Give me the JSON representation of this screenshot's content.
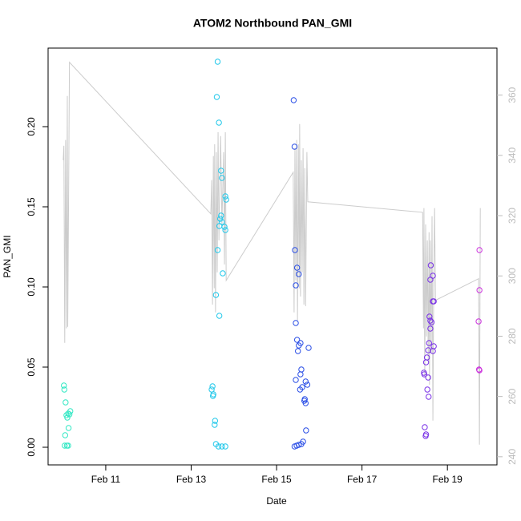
{
  "chart_data": {
    "type": "scatter",
    "title": "ATOM2 Northbound PAN_GMI",
    "x_label": "Date",
    "y_label": "PAN_GMI",
    "xlim": [
      9.65,
      20.16
    ],
    "xticks": [
      {
        "value": 11,
        "label": "Feb 11"
      },
      {
        "value": 13,
        "label": "Feb 13"
      },
      {
        "value": 15,
        "label": "Feb 15"
      },
      {
        "value": 17,
        "label": "Feb 17"
      },
      {
        "value": 19,
        "label": "Feb 19"
      }
    ],
    "ylim": [
      -0.011,
      0.249
    ],
    "yticks": [
      {
        "value": 0,
        "label": "0.00"
      },
      {
        "value": 0.05,
        "label": "0.05"
      },
      {
        "value": 0.1,
        "label": "0.10"
      },
      {
        "value": 0.15,
        "label": "0.15"
      },
      {
        "value": 0.2,
        "label": "0.20"
      }
    ],
    "y2lim": [
      237.3,
      375.6
    ],
    "y2ticks": [
      240,
      260,
      280,
      300,
      320,
      340,
      360
    ],
    "series": [
      {
        "style": "line",
        "axis": "y2",
        "color": "#cccccc",
        "x": [
          10.005,
          10.02,
          10.04,
          10.06,
          10.08,
          10.1,
          10.11,
          10.13,
          10.15,
          13.46,
          13.48,
          13.5,
          13.52,
          13.54,
          13.55,
          13.57,
          13.59,
          13.61,
          13.63,
          13.65,
          13.69,
          13.72,
          13.76,
          13.78,
          13.8,
          13.82,
          15.39,
          15.41,
          15.43,
          15.45,
          15.47,
          15.49,
          15.51,
          15.53,
          15.54,
          15.56,
          15.58,
          15.6,
          15.62,
          15.64,
          15.66,
          15.68,
          15.71,
          15.73,
          18.42,
          18.44,
          18.45,
          18.47,
          18.49,
          18.51,
          18.53,
          18.55,
          18.57,
          18.58,
          18.6,
          18.62,
          18.64,
          18.66,
          18.68,
          18.7,
          18.72,
          19.73,
          19.75,
          19.77
        ],
        "values": [
          338.4,
          343.2,
          277.8,
          345.1,
          282.6,
          359.7,
          283.1,
          325.1,
          370.9,
          320.6,
          331.8,
          290.5,
          339.8,
          295.9,
          343.7,
          287.9,
          341.1,
          301.2,
          347.7,
          311.8,
          346.4,
          317.1,
          341.1,
          303.8,
          347.7,
          298.5,
          334.4,
          287.9,
          342.4,
          298.5,
          345.1,
          285.2,
          343.7,
          295.9,
          350.4,
          293.2,
          338.4,
          301.2,
          342.4,
          290.5,
          335.8,
          290.0,
          341.1,
          324.6,
          321.1,
          282.6,
          322.5,
          266.6,
          317.1,
          279.9,
          311.8,
          271.9,
          314.5,
          263.9,
          311.8,
          274.6,
          319.8,
          252.0,
          298.5,
          322.5,
          291.9,
          299.1,
          244.0,
          322.5
        ]
      },
      {
        "style": "points",
        "color": "#33e8c4",
        "x": [
          10.02,
          10.03,
          10.15,
          10.06,
          10.08,
          10.12,
          10.17,
          10.1,
          10.13,
          10.05,
          10.04,
          10.09,
          10.12
        ],
        "values": [
          0.0385,
          0.036,
          0.0205,
          0.028,
          0.02,
          0.021,
          0.0225,
          0.0185,
          0.012,
          0.0075,
          0.001,
          0.001,
          0.001
        ]
      },
      {
        "style": "points",
        "color": "#22c8ea",
        "x": [
          13.62,
          13.6,
          13.65,
          13.7,
          13.72,
          13.8,
          13.82,
          13.7,
          13.68,
          13.72,
          13.66,
          13.8,
          13.78,
          13.62,
          13.74,
          13.58,
          13.66,
          13.5,
          13.48,
          13.52,
          13.51,
          13.56,
          13.55,
          13.58,
          13.64,
          13.72,
          13.8
        ],
        "values": [
          0.2405,
          0.2185,
          0.2025,
          0.1725,
          0.168,
          0.1565,
          0.1545,
          0.1445,
          0.1425,
          0.1405,
          0.138,
          0.1355,
          0.1375,
          0.123,
          0.1085,
          0.095,
          0.082,
          0.038,
          0.036,
          0.033,
          0.032,
          0.0165,
          0.014,
          0.002,
          0.0005,
          0.0005,
          0.0005
        ]
      },
      {
        "style": "points",
        "color": "#2b4fe6",
        "x": [
          15.4,
          15.42,
          15.43,
          15.48,
          15.52,
          15.45,
          15.45,
          15.48,
          15.56,
          15.52,
          15.75,
          15.5,
          15.58,
          15.56,
          15.45,
          15.68,
          15.72,
          15.6,
          15.55,
          15.66,
          15.65,
          15.68,
          15.69,
          15.62,
          15.58,
          15.52,
          15.47,
          15.42
        ],
        "values": [
          0.2165,
          0.1875,
          0.123,
          0.112,
          0.108,
          0.101,
          0.0775,
          0.067,
          0.065,
          0.0635,
          0.062,
          0.06,
          0.0485,
          0.0455,
          0.042,
          0.041,
          0.039,
          0.0375,
          0.036,
          0.03,
          0.029,
          0.0275,
          0.0105,
          0.0035,
          0.002,
          0.0015,
          0.001,
          0.0005
        ]
      },
      {
        "style": "points",
        "color": "#7a32e6",
        "x": [
          18.61,
          18.66,
          18.6,
          18.68,
          18.66,
          18.58,
          18.6,
          18.63,
          18.6,
          18.57,
          18.68,
          18.55,
          18.66,
          18.52,
          18.5,
          18.45,
          18.46,
          18.55,
          18.53,
          18.56,
          18.47,
          18.5,
          18.49
        ],
        "values": [
          0.1135,
          0.107,
          0.1045,
          0.091,
          0.091,
          0.0815,
          0.079,
          0.078,
          0.074,
          0.065,
          0.063,
          0.0605,
          0.06,
          0.056,
          0.053,
          0.0465,
          0.0455,
          0.0435,
          0.036,
          0.0315,
          0.0125,
          0.008,
          0.007
        ]
      },
      {
        "style": "points",
        "color": "#cc33dd",
        "x": [
          19.75,
          19.75,
          19.73,
          19.74,
          19.75
        ],
        "values": [
          0.123,
          0.098,
          0.0785,
          0.0485,
          0.048
        ]
      }
    ]
  }
}
